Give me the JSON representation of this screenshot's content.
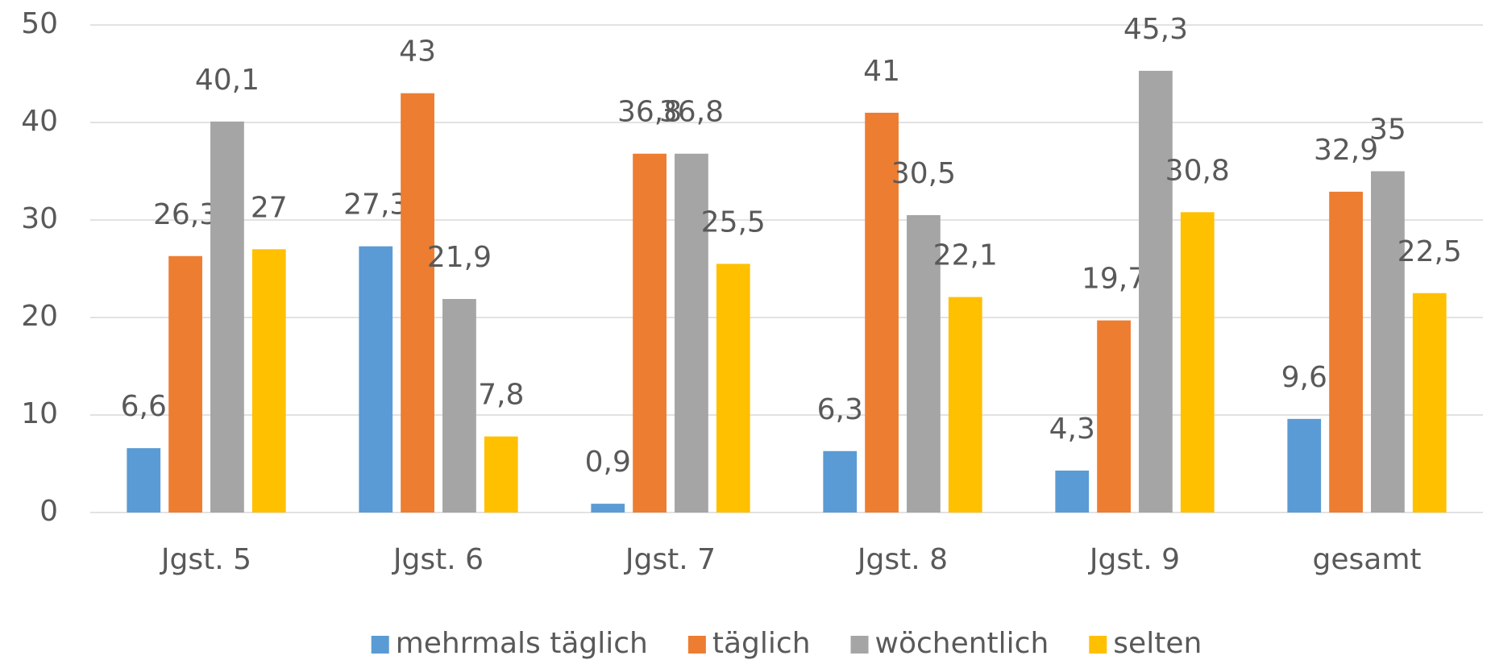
{
  "chart_data": {
    "type": "bar",
    "categories": [
      "Jgst. 5",
      "Jgst. 6",
      "Jgst. 7",
      "Jgst. 8",
      "Jgst. 9",
      "gesamt"
    ],
    "series": [
      {
        "name": "mehrmals täglich",
        "color": "#5b9bd5",
        "values": [
          6.6,
          27.3,
          0.9,
          6.3,
          4.3,
          9.6
        ],
        "value_labels": [
          "6,6",
          "27,3",
          "0,9",
          "6,3",
          "4,3",
          "9,6"
        ]
      },
      {
        "name": "täglich",
        "color": "#ed7d31",
        "values": [
          26.3,
          43,
          36.8,
          41,
          19.7,
          32.9
        ],
        "value_labels": [
          "26,3",
          "43",
          "36,8",
          "41",
          "19,7",
          "32,9"
        ]
      },
      {
        "name": "wöchentlich",
        "color": "#a5a5a5",
        "values": [
          40.1,
          21.9,
          36.8,
          30.5,
          45.3,
          35
        ],
        "value_labels": [
          "40,1",
          "21,9",
          "36,8",
          "30,5",
          "45,3",
          "35"
        ]
      },
      {
        "name": "selten",
        "color": "#ffc000",
        "values": [
          27,
          7.8,
          25.5,
          22.1,
          30.8,
          22.5
        ],
        "value_labels": [
          "27",
          "7,8",
          "25,5",
          "22,1",
          "30,8",
          "22,5"
        ]
      }
    ],
    "ylim": [
      0,
      50
    ],
    "yticks": [
      0,
      10,
      20,
      30,
      40,
      50
    ],
    "grid": true,
    "legend": "bottom"
  }
}
